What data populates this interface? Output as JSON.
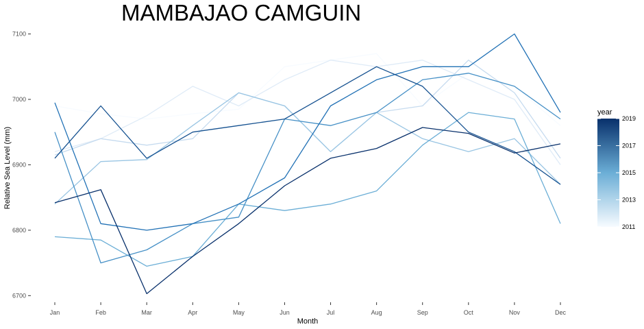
{
  "chart_data": {
    "type": "line",
    "title": "MAMBAJAO CAMGUIN",
    "xlabel": "Month",
    "ylabel": "Relative Sea Level (mm)",
    "categories": [
      "Jan",
      "Feb",
      "Mar",
      "Apr",
      "May",
      "Jun",
      "Jul",
      "Aug",
      "Sep",
      "Oct",
      "Nov",
      "Dec"
    ],
    "y_ticks": [
      6700,
      6800,
      6900,
      7000,
      7100
    ],
    "y_tick_labels": [
      "6700",
      "6800",
      "6900",
      "7000",
      "7100"
    ],
    "ylim": [
      6693,
      7110
    ],
    "grid": false,
    "legend": {
      "title": "year",
      "type": "colorbar",
      "range": [
        2011,
        2019
      ],
      "ticks": [
        "2019",
        "2017",
        "2015",
        "2013",
        "2011"
      ],
      "position": "right",
      "color_low": "#f7fbff",
      "color_high": "#08306b"
    },
    "series": [
      {
        "year": 2011,
        "values": [
          6990,
          6978,
          6970,
          6978,
          6985,
          7050,
          7060,
          7070,
          6990,
          7040,
          7020,
          6960
        ]
      },
      {
        "year": 2012,
        "values": [
          6920,
          6940,
          6975,
          7020,
          6990,
          7030,
          7060,
          7050,
          7060,
          7030,
          7000,
          6900
        ]
      },
      {
        "year": 2013,
        "values": [
          6915,
          6940,
          6930,
          6940,
          7010,
          6990,
          6920,
          6980,
          6990,
          7060,
          7010,
          6910
        ]
      },
      {
        "year": 2014,
        "values": [
          6840,
          6905,
          6908,
          6960,
          7010,
          6990,
          6920,
          6980,
          6940,
          6920,
          6940,
          6870
        ]
      },
      {
        "year": 2015,
        "values": [
          6790,
          6785,
          6745,
          6760,
          6840,
          6830,
          6840,
          6860,
          6930,
          6980,
          6970,
          6810
        ]
      },
      {
        "year": 2016,
        "values": [
          6950,
          6750,
          6770,
          6810,
          6820,
          6970,
          6960,
          6980,
          7030,
          7040,
          7020,
          6970
        ]
      },
      {
        "year": 2017,
        "values": [
          6995,
          6810,
          6800,
          6810,
          6840,
          6880,
          6990,
          7030,
          7050,
          7050,
          7100,
          6980
        ]
      },
      {
        "year": 2018,
        "values": [
          6910,
          6990,
          6910,
          6950,
          6960,
          6970,
          7010,
          7050,
          7020,
          6950,
          6920,
          6870
        ]
      },
      {
        "year": 2019,
        "values": [
          6842,
          6862,
          6703,
          6760,
          6810,
          6868,
          6910,
          6925,
          6957,
          6948,
          6918,
          6932
        ]
      }
    ]
  }
}
